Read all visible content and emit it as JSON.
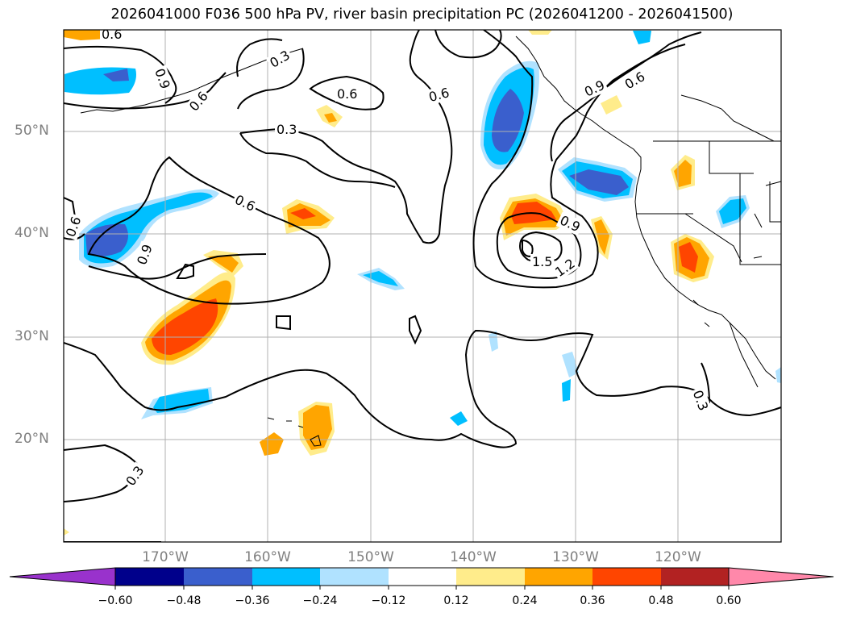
{
  "title": "2026041000 F036 500 hPa PV, river basin precipitation PC (2026041200 - 2026041500)",
  "latitude_labels": [
    "50°N",
    "40°N",
    "30°N",
    "20°N"
  ],
  "longitude_labels": [
    "170°W",
    "160°W",
    "150°W",
    "140°W",
    "130°W",
    "120°W"
  ],
  "contour_labels": [
    "0.6",
    "0.9",
    "0.6",
    "0.3",
    "0.6",
    "0.6",
    "0.9",
    "0.6",
    "0.3",
    "0.6",
    "0.6",
    "0.9",
    "0.9",
    "1.5",
    "1.2",
    "0.3",
    "0.3"
  ],
  "colorbar": {
    "ticks": [
      "−0.60",
      "−0.48",
      "−0.36",
      "−0.24",
      "−0.12",
      "0.12",
      "0.24",
      "0.36",
      "0.48",
      "0.60"
    ],
    "colors": [
      "#9932CC",
      "#00008B",
      "#3A5FCD",
      "#00BFFF",
      "#B0E2FF",
      "#FFFFFF",
      "#FFEC8B",
      "#FFA500",
      "#FF4500",
      "#B22222",
      "#FF88AA"
    ]
  },
  "colors": {
    "grid": "#b0b0b0",
    "coast": "#000000"
  }
}
